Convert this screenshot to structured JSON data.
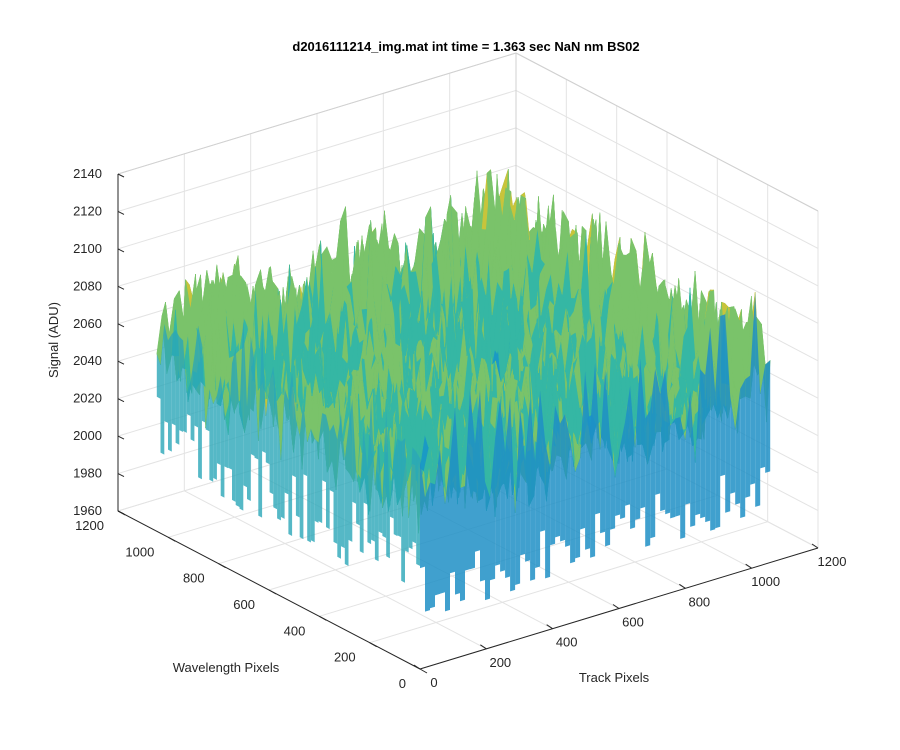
{
  "chart_data": {
    "type": "surface",
    "title": "d2016111214_img.mat int time = 1.363 sec  NaN nm BS02",
    "xlabel": "Track Pixels",
    "ylabel": "Wavelength Pixels",
    "zlabel": "Signal (ADU)",
    "xlim": [
      0,
      1200
    ],
    "ylim": [
      0,
      1200
    ],
    "zlim": [
      1960,
      2140
    ],
    "x_ticks": [
      0,
      200,
      400,
      600,
      800,
      1000,
      1200
    ],
    "y_ticks": [
      0,
      200,
      400,
      600,
      800,
      1000,
      1200
    ],
    "z_ticks": [
      1960,
      1980,
      2000,
      2020,
      2040,
      2060,
      2080,
      2100,
      2120,
      2140
    ],
    "x_tick_labels": [
      "0",
      "200",
      "400",
      "600",
      "800",
      "1000",
      "1200"
    ],
    "y_tick_labels": [
      "0",
      "200",
      "400",
      "600",
      "800",
      "1000",
      "1200"
    ],
    "z_tick_labels": [
      "1960",
      "1980",
      "2000",
      "2020",
      "2040",
      "2060",
      "2080",
      "2100",
      "2120",
      "2140"
    ],
    "data_extent": {
      "x": [
        0,
        1056
      ],
      "y": [
        0,
        1046
      ]
    },
    "mean_level": 2060,
    "noise_range": [
      1975,
      2135
    ],
    "colormap": [
      "#0072bd",
      "#1a9ac5",
      "#35b7a4",
      "#7ac36a",
      "#c8c43b",
      "#f7c22a"
    ],
    "grid": true
  }
}
